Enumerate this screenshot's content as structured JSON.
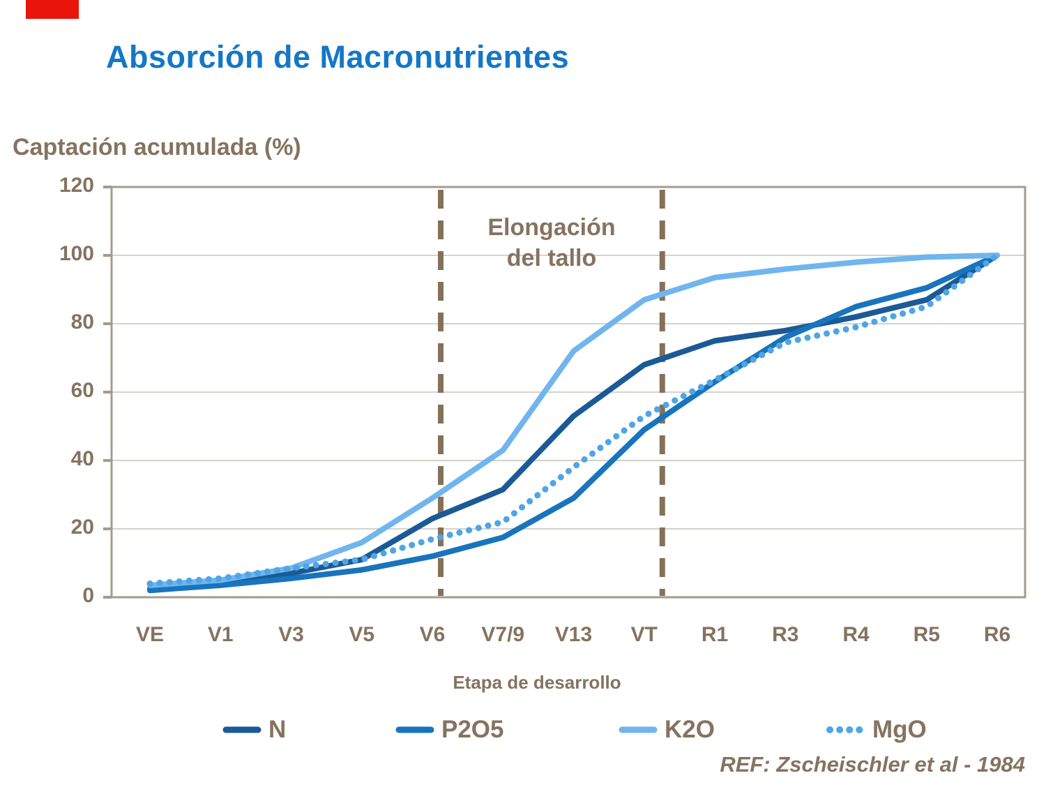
{
  "accent_bar_color": "#E9140A",
  "footer": "REF: Zscheischler et al - 1984",
  "colors": {
    "title_blue": "#1477C6",
    "text_taupe": "#857360",
    "dashed_line": "#847158",
    "gridline": "#C9C4B8",
    "plot_border": "#A59B8B"
  },
  "chart_data": {
    "type": "line",
    "title": "Absorción de Macronutrientes",
    "ylabel": "Captación acumulada (%)",
    "xlabel": "Etapa de desarrollo",
    "ylim": [
      0,
      120
    ],
    "yticks": [
      0,
      20,
      40,
      60,
      80,
      100,
      120
    ],
    "grid": true,
    "legend_position": "bottom",
    "categories": [
      "VE",
      "V1",
      "V3",
      "V5",
      "V6",
      "V7/9",
      "V13",
      "VT",
      "R1",
      "R3",
      "R4",
      "R5",
      "R6"
    ],
    "series": [
      {
        "name": "N",
        "color": "#1A5A96",
        "style": "solid",
        "values": [
          2.5,
          4,
          7,
          11,
          23,
          31.5,
          53,
          68,
          75,
          78,
          82,
          87,
          100
        ]
      },
      {
        "name": "P2O5",
        "color": "#1874BC",
        "style": "solid",
        "values": [
          2,
          3.5,
          5.5,
          8,
          12,
          17.5,
          29,
          49,
          63,
          76,
          85,
          90.5,
          100
        ]
      },
      {
        "name": "K2O",
        "color": "#70B5EE",
        "style": "solid",
        "values": [
          3.5,
          5,
          8.5,
          16,
          29,
          43,
          72,
          87,
          93.5,
          96,
          98,
          99.5,
          100
        ]
      },
      {
        "name": "MgO",
        "color": "#4FA5E5",
        "style": "dotted",
        "values": [
          4,
          5.5,
          8.5,
          11,
          17,
          22,
          38,
          53,
          63.5,
          74.5,
          79,
          85,
          100
        ]
      }
    ],
    "vline_categories": [
      "V6",
      "VT"
    ],
    "annotation": {
      "line1": "Elongación",
      "line2": "del tallo"
    }
  }
}
